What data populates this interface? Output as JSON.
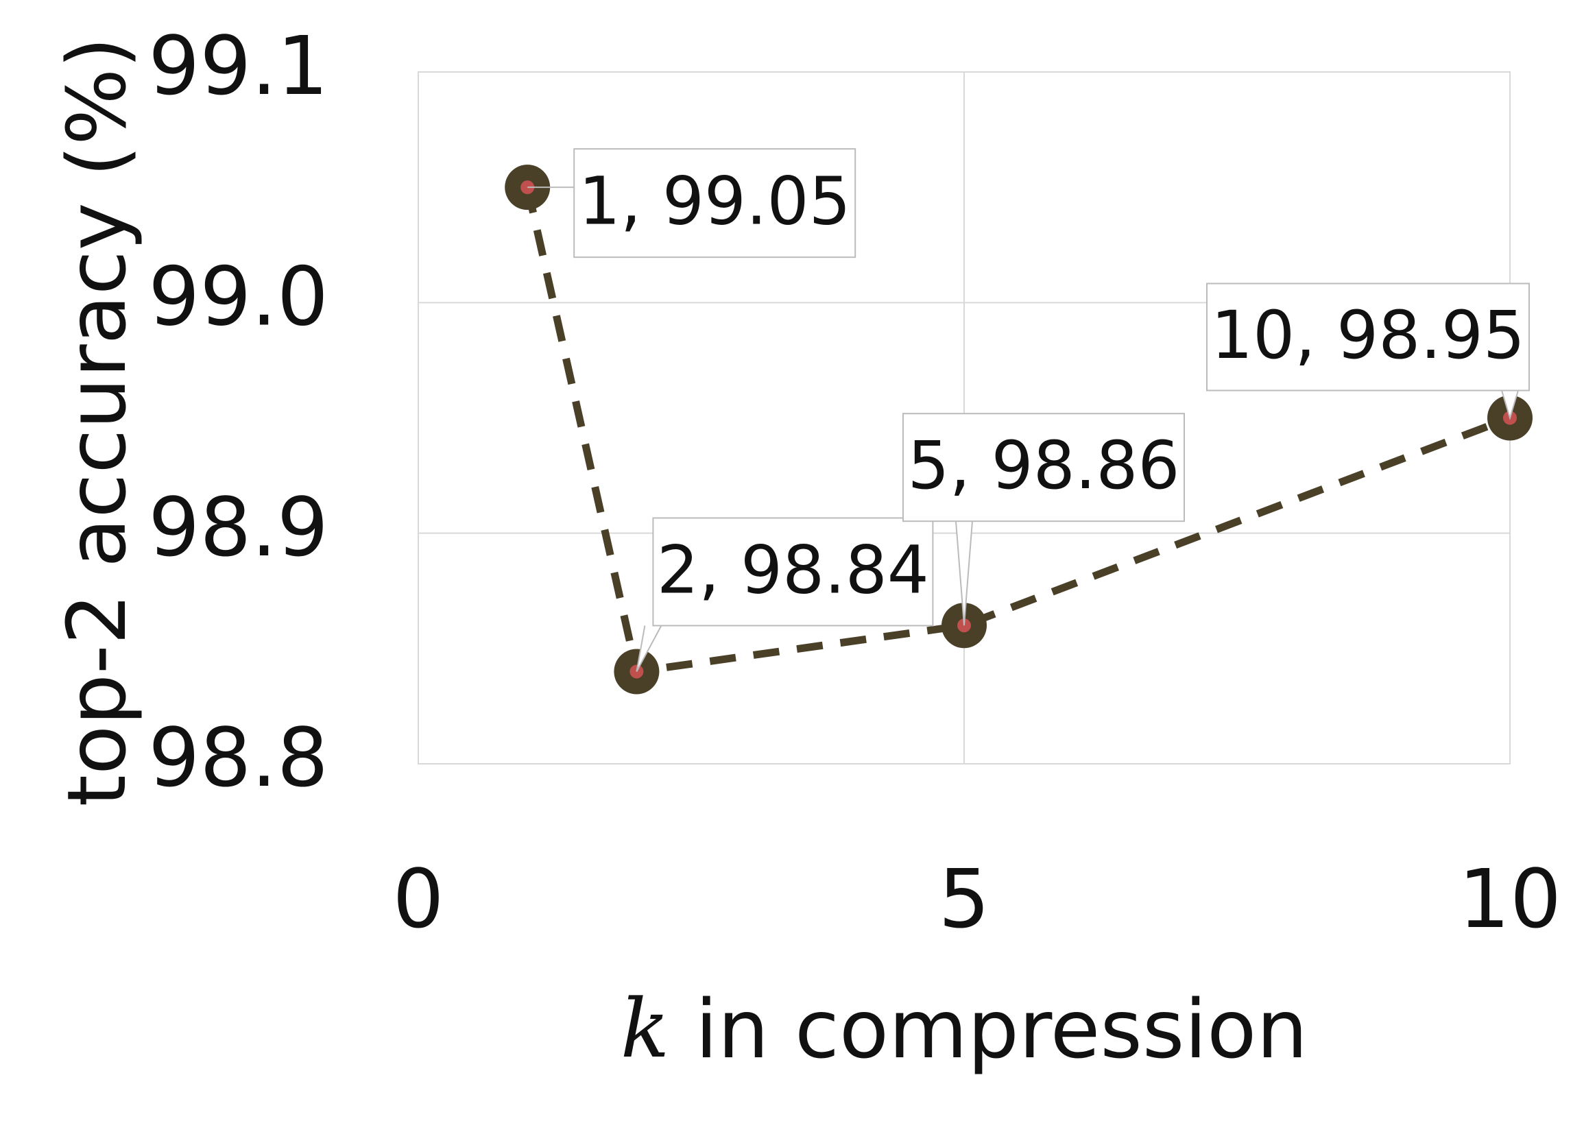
{
  "chart_data": {
    "type": "line",
    "x_label": "k in compression",
    "y_label": "top-2 accuracy (%)",
    "x": [
      1,
      2,
      5,
      10
    ],
    "series": [
      {
        "color": "#4a4028",
        "marker_color": "#c0504d",
        "values": [
          99.05,
          98.84,
          98.86,
          98.95
        ],
        "value_labels": [
          "1, 99.05",
          "2, 98.84",
          "5, 98.86",
          "10, 98.95"
        ]
      }
    ],
    "xlim": [
      0,
      10
    ],
    "xticks": [
      0,
      5,
      10
    ],
    "ylim": [
      98.8,
      99.1
    ],
    "yticks": [
      98.8,
      98.9,
      {
        "value": 99,
        "label": "99.0"
      },
      99.1
    ],
    "grid": true
  }
}
